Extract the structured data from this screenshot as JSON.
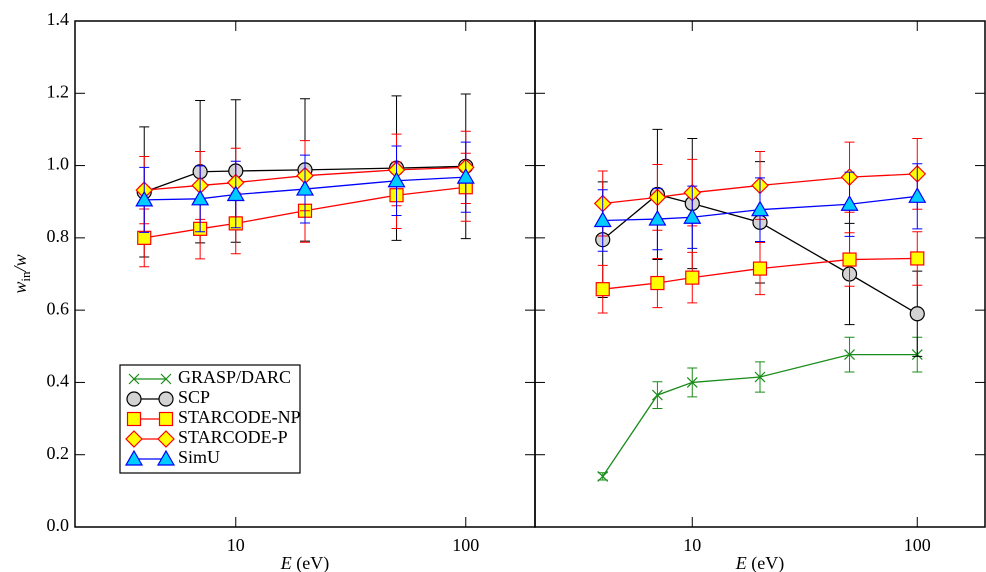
{
  "chart_data": [
    {
      "type": "line",
      "xlabel": [
        "E",
        " (eV)"
      ],
      "ylabel": [
        "w",
        "in",
        "/w"
      ],
      "log_x": true,
      "xlim": [
        2,
        200
      ],
      "xticks": [
        10,
        100
      ],
      "ylim": [
        0,
        1.4
      ],
      "ytick_labels": true,
      "yticks": [
        {
          "value": 0,
          "label": "0.0"
        },
        {
          "value": 0.2,
          "label": "0.2"
        },
        {
          "value": 0.4,
          "label": "0.4"
        },
        {
          "value": 0.6,
          "label": "0.6"
        },
        {
          "value": 0.8,
          "label": "0.8"
        },
        {
          "value": 1,
          "label": "1.0"
        },
        {
          "value": 1.2,
          "label": "1.2"
        },
        {
          "value": 1.4,
          "label": "1.4"
        }
      ],
      "legend": "lower left",
      "x": [
        4,
        7,
        10,
        20,
        50,
        100
      ],
      "series": [
        {
          "name": "GRASP/DARC",
          "color": "#1a8c1a",
          "marker": "x",
          "marker_fill": "none",
          "values": [
            null,
            null,
            null,
            null,
            null,
            null
          ],
          "errors": [
            null,
            null,
            null,
            null,
            null,
            null
          ]
        },
        {
          "name": "SCP",
          "color": "#000000",
          "marker": "circle",
          "marker_fill": "#d3d3d3",
          "values": [
            0.927,
            0.983,
            0.985,
            0.988,
            0.993,
            0.998
          ],
          "errors": [
            0.18,
            0.197,
            0.197,
            0.197,
            0.2,
            0.2
          ]
        },
        {
          "name": "STARCODE-NP",
          "color": "#ff0000",
          "marker": "square",
          "marker_fill": "#ffff00",
          "values": [
            0.8,
            0.825,
            0.84,
            0.875,
            0.918,
            0.94
          ],
          "errors": [
            0.08,
            0.083,
            0.084,
            0.087,
            0.092,
            0.094
          ]
        },
        {
          "name": "STARCODE-P",
          "color": "#ff0000",
          "marker": "diamond",
          "marker_fill": "#ffff00",
          "values": [
            0.932,
            0.945,
            0.953,
            0.972,
            0.988,
            0.995
          ],
          "errors": [
            0.093,
            0.094,
            0.095,
            0.097,
            0.099,
            0.1
          ]
        },
        {
          "name": "SimU",
          "color": "#0000ff",
          "marker": "triangle",
          "marker_fill": "#00ccff",
          "values": [
            0.905,
            0.908,
            0.92,
            0.935,
            0.958,
            0.968
          ],
          "errors": [
            0.09,
            0.091,
            0.092,
            0.094,
            0.096,
            0.097
          ]
        }
      ]
    },
    {
      "type": "line",
      "xlabel": [
        "E",
        " (eV)"
      ],
      "log_x": true,
      "xlim": [
        2,
        200
      ],
      "xticks": [
        10,
        100
      ],
      "ylim": [
        0,
        1.4
      ],
      "ytick_labels": false,
      "yticks": [
        0,
        0.2,
        0.4,
        0.6,
        0.8,
        1,
        1.2,
        1.4
      ],
      "x": [
        4,
        7,
        10,
        20,
        50,
        100
      ],
      "series": [
        {
          "name": "GRASP/DARC",
          "color": "#1a8c1a",
          "marker": "x",
          "marker_fill": "none",
          "values": [
            0.14,
            0.365,
            0.4,
            0.415,
            0.477,
            0.477
          ],
          "errors": [
            0.01,
            0.037,
            0.04,
            0.042,
            0.048,
            0.048
          ]
        },
        {
          "name": "SCP",
          "color": "#000000",
          "marker": "circle",
          "marker_fill": "#d3d3d3",
          "values": [
            0.795,
            0.92,
            0.895,
            0.843,
            0.7,
            0.59
          ],
          "errors": [
            0.16,
            0.18,
            0.18,
            0.168,
            0.14,
            0.118
          ]
        },
        {
          "name": "STARCODE-NP",
          "color": "#ff0000",
          "marker": "square",
          "marker_fill": "#ffff00",
          "values": [
            0.658,
            0.675,
            0.69,
            0.715,
            0.74,
            0.743
          ],
          "errors": [
            0.066,
            0.068,
            0.07,
            0.072,
            0.074,
            0.074
          ]
        },
        {
          "name": "STARCODE-P",
          "color": "#ff0000",
          "marker": "diamond",
          "marker_fill": "#ffff00",
          "values": [
            0.895,
            0.912,
            0.925,
            0.945,
            0.968,
            0.977
          ],
          "errors": [
            0.09,
            0.091,
            0.092,
            0.094,
            0.097,
            0.098
          ]
        },
        {
          "name": "SimU",
          "color": "#0000ff",
          "marker": "triangle",
          "marker_fill": "#00ccff",
          "values": [
            0.848,
            0.852,
            0.857,
            0.878,
            0.893,
            0.915
          ],
          "errors": [
            0.085,
            0.085,
            0.086,
            0.088,
            0.089,
            0.09
          ]
        }
      ]
    }
  ]
}
